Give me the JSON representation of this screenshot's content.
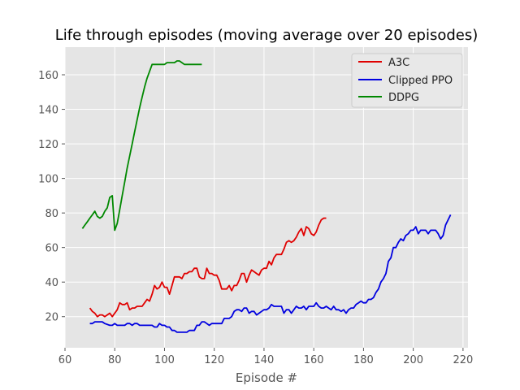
{
  "chart_data": {
    "type": "line",
    "title": "Life through episodes (moving average over 20 episodes)",
    "xlabel": "Episode #",
    "ylabel": "",
    "xlim": [
      60,
      222
    ],
    "ylim": [
      2,
      176
    ],
    "xticks": [
      60,
      80,
      100,
      120,
      140,
      160,
      180,
      200,
      220
    ],
    "yticks": [
      20,
      40,
      60,
      80,
      100,
      120,
      140,
      160
    ],
    "grid": true,
    "legend_position": "top-right",
    "series": [
      {
        "name": "A3C",
        "color": "#e00000",
        "points": [
          [
            70,
            25
          ],
          [
            71,
            23
          ],
          [
            72,
            22
          ],
          [
            73,
            20
          ],
          [
            74,
            21
          ],
          [
            75,
            21
          ],
          [
            76,
            20
          ],
          [
            77,
            21
          ],
          [
            78,
            22
          ],
          [
            79,
            20
          ],
          [
            80,
            22
          ],
          [
            81,
            24
          ],
          [
            82,
            28
          ],
          [
            83,
            27
          ],
          [
            84,
            27
          ],
          [
            85,
            28
          ],
          [
            86,
            24
          ],
          [
            87,
            25
          ],
          [
            88,
            25
          ],
          [
            89,
            26
          ],
          [
            90,
            26
          ],
          [
            91,
            26
          ],
          [
            92,
            28
          ],
          [
            93,
            30
          ],
          [
            94,
            29
          ],
          [
            95,
            33
          ],
          [
            96,
            38
          ],
          [
            97,
            36
          ],
          [
            98,
            37
          ],
          [
            99,
            40
          ],
          [
            100,
            37
          ],
          [
            101,
            37
          ],
          [
            102,
            33
          ],
          [
            103,
            38
          ],
          [
            104,
            43
          ],
          [
            105,
            43
          ],
          [
            106,
            43
          ],
          [
            107,
            42
          ],
          [
            108,
            45
          ],
          [
            109,
            45
          ],
          [
            110,
            46
          ],
          [
            111,
            46
          ],
          [
            112,
            48
          ],
          [
            113,
            48
          ],
          [
            114,
            43
          ],
          [
            115,
            42
          ],
          [
            116,
            42
          ],
          [
            117,
            48
          ],
          [
            118,
            45
          ],
          [
            119,
            45
          ],
          [
            120,
            44
          ],
          [
            121,
            44
          ],
          [
            122,
            41
          ],
          [
            123,
            36
          ],
          [
            124,
            36
          ],
          [
            125,
            36
          ],
          [
            126,
            38
          ],
          [
            127,
            35
          ],
          [
            128,
            38
          ],
          [
            129,
            38
          ],
          [
            130,
            41
          ],
          [
            131,
            45
          ],
          [
            132,
            45
          ],
          [
            133,
            40
          ],
          [
            134,
            44
          ],
          [
            135,
            47
          ],
          [
            136,
            46
          ],
          [
            137,
            45
          ],
          [
            138,
            44
          ],
          [
            139,
            47
          ],
          [
            140,
            48
          ],
          [
            141,
            48
          ],
          [
            142,
            52
          ],
          [
            143,
            50
          ],
          [
            144,
            54
          ],
          [
            145,
            56
          ],
          [
            146,
            56
          ],
          [
            147,
            56
          ],
          [
            148,
            59
          ],
          [
            149,
            63
          ],
          [
            150,
            64
          ],
          [
            151,
            63
          ],
          [
            152,
            64
          ],
          [
            153,
            66
          ],
          [
            154,
            69
          ],
          [
            155,
            71
          ],
          [
            156,
            67
          ],
          [
            157,
            72
          ],
          [
            158,
            71
          ],
          [
            159,
            68
          ],
          [
            160,
            67
          ],
          [
            161,
            69
          ],
          [
            162,
            73
          ],
          [
            163,
            76
          ],
          [
            164,
            77
          ],
          [
            165,
            77
          ]
        ]
      },
      {
        "name": "Clipped PPO",
        "color": "#0000e0",
        "points": [
          [
            70,
            16
          ],
          [
            71,
            16
          ],
          [
            72,
            17
          ],
          [
            74,
            17
          ],
          [
            75,
            17
          ],
          [
            76,
            16
          ],
          [
            78,
            15
          ],
          [
            79,
            15
          ],
          [
            80,
            16
          ],
          [
            81,
            15
          ],
          [
            82,
            15
          ],
          [
            83,
            15
          ],
          [
            84,
            15
          ],
          [
            85,
            16
          ],
          [
            86,
            16
          ],
          [
            87,
            15
          ],
          [
            88,
            16
          ],
          [
            89,
            16
          ],
          [
            90,
            15
          ],
          [
            91,
            15
          ],
          [
            92,
            15
          ],
          [
            93,
            15
          ],
          [
            94,
            15
          ],
          [
            95,
            15
          ],
          [
            96,
            14
          ],
          [
            97,
            14
          ],
          [
            98,
            16
          ],
          [
            99,
            15
          ],
          [
            100,
            15
          ],
          [
            101,
            14
          ],
          [
            102,
            14
          ],
          [
            103,
            12
          ],
          [
            104,
            12
          ],
          [
            105,
            11
          ],
          [
            106,
            11
          ],
          [
            107,
            11
          ],
          [
            108,
            11
          ],
          [
            109,
            11
          ],
          [
            110,
            12
          ],
          [
            111,
            12
          ],
          [
            112,
            12
          ],
          [
            113,
            15
          ],
          [
            114,
            15
          ],
          [
            115,
            17
          ],
          [
            116,
            17
          ],
          [
            117,
            16
          ],
          [
            118,
            15
          ],
          [
            119,
            16
          ],
          [
            120,
            16
          ],
          [
            121,
            16
          ],
          [
            122,
            16
          ],
          [
            123,
            16
          ],
          [
            124,
            19
          ],
          [
            125,
            19
          ],
          [
            126,
            19
          ],
          [
            127,
            20
          ],
          [
            128,
            23
          ],
          [
            129,
            24
          ],
          [
            130,
            24
          ],
          [
            131,
            23
          ],
          [
            132,
            25
          ],
          [
            133,
            25
          ],
          [
            134,
            22
          ],
          [
            135,
            23
          ],
          [
            136,
            23
          ],
          [
            137,
            21
          ],
          [
            138,
            22
          ],
          [
            139,
            23
          ],
          [
            140,
            24
          ],
          [
            141,
            24
          ],
          [
            142,
            25
          ],
          [
            143,
            27
          ],
          [
            144,
            26
          ],
          [
            145,
            26
          ],
          [
            146,
            26
          ],
          [
            147,
            26
          ],
          [
            148,
            22
          ],
          [
            149,
            24
          ],
          [
            150,
            24
          ],
          [
            151,
            22
          ],
          [
            152,
            24
          ],
          [
            153,
            26
          ],
          [
            154,
            25
          ],
          [
            155,
            25
          ],
          [
            156,
            26
          ],
          [
            157,
            24
          ],
          [
            158,
            26
          ],
          [
            159,
            26
          ],
          [
            160,
            26
          ],
          [
            161,
            28
          ],
          [
            162,
            26
          ],
          [
            163,
            25
          ],
          [
            164,
            25
          ],
          [
            165,
            26
          ],
          [
            166,
            25
          ],
          [
            167,
            24
          ],
          [
            168,
            26
          ],
          [
            169,
            24
          ],
          [
            170,
            24
          ],
          [
            171,
            23
          ],
          [
            172,
            24
          ],
          [
            173,
            22
          ],
          [
            174,
            24
          ],
          [
            175,
            25
          ],
          [
            176,
            25
          ],
          [
            177,
            27
          ],
          [
            178,
            28
          ],
          [
            179,
            29
          ],
          [
            180,
            28
          ],
          [
            181,
            28
          ],
          [
            182,
            30
          ],
          [
            183,
            30
          ],
          [
            184,
            31
          ],
          [
            185,
            34
          ],
          [
            186,
            36
          ],
          [
            187,
            40
          ],
          [
            188,
            42
          ],
          [
            189,
            45
          ],
          [
            190,
            52
          ],
          [
            191,
            54
          ],
          [
            192,
            60
          ],
          [
            193,
            60
          ],
          [
            194,
            63
          ],
          [
            195,
            65
          ],
          [
            196,
            64
          ],
          [
            197,
            67
          ],
          [
            198,
            68
          ],
          [
            199,
            70
          ],
          [
            200,
            70
          ],
          [
            201,
            72
          ],
          [
            202,
            68
          ],
          [
            203,
            70
          ],
          [
            204,
            70
          ],
          [
            205,
            70
          ],
          [
            206,
            68
          ],
          [
            207,
            70
          ],
          [
            208,
            70
          ],
          [
            209,
            70
          ],
          [
            210,
            68
          ],
          [
            211,
            65
          ],
          [
            212,
            67
          ],
          [
            213,
            73
          ],
          [
            214,
            76
          ],
          [
            215,
            79
          ]
        ]
      },
      {
        "name": "DDPG",
        "color": "#008800",
        "points": [
          [
            67,
            71
          ],
          [
            68,
            73
          ],
          [
            69,
            75
          ],
          [
            70,
            77
          ],
          [
            71,
            79
          ],
          [
            72,
            81
          ],
          [
            73,
            78
          ],
          [
            74,
            77
          ],
          [
            75,
            78
          ],
          [
            76,
            81
          ],
          [
            77,
            83
          ],
          [
            78,
            89
          ],
          [
            79,
            90
          ],
          [
            80,
            70
          ],
          [
            81,
            74
          ],
          [
            82,
            82
          ],
          [
            83,
            90
          ],
          [
            84,
            98
          ],
          [
            85,
            106
          ],
          [
            86,
            113
          ],
          [
            87,
            120
          ],
          [
            88,
            127
          ],
          [
            89,
            134
          ],
          [
            90,
            141
          ],
          [
            91,
            147
          ],
          [
            92,
            153
          ],
          [
            93,
            158
          ],
          [
            94,
            162
          ],
          [
            95,
            166
          ],
          [
            96,
            166
          ],
          [
            97,
            166
          ],
          [
            98,
            166
          ],
          [
            99,
            166
          ],
          [
            100,
            166
          ],
          [
            101,
            167
          ],
          [
            102,
            167
          ],
          [
            103,
            167
          ],
          [
            104,
            167
          ],
          [
            105,
            168
          ],
          [
            106,
            168
          ],
          [
            107,
            167
          ],
          [
            108,
            166
          ],
          [
            109,
            166
          ],
          [
            110,
            166
          ],
          [
            111,
            166
          ],
          [
            112,
            166
          ],
          [
            113,
            166
          ],
          [
            114,
            166
          ],
          [
            115,
            166
          ]
        ]
      }
    ]
  }
}
